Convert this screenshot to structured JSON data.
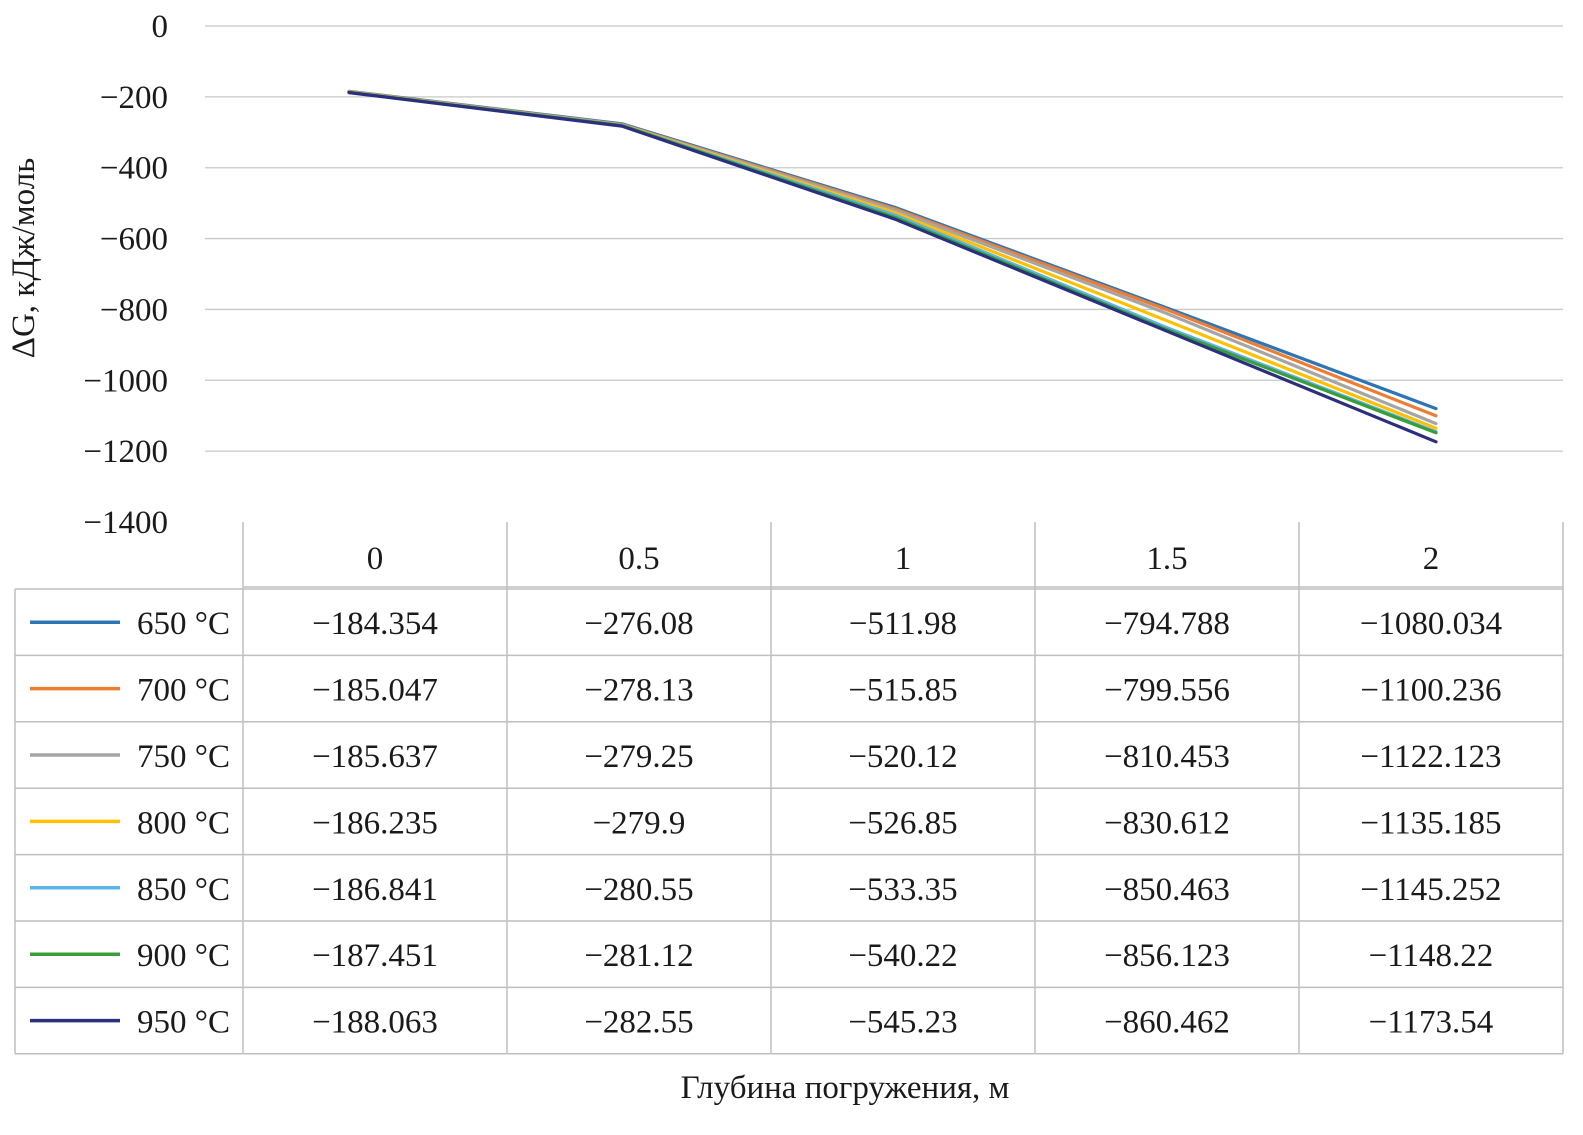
{
  "chart_data": {
    "type": "line",
    "x": [
      "0",
      "0.5",
      "1",
      "1.5",
      "2"
    ],
    "xlabel": "Глубина погружения, м",
    "ylabel": "ΔG, кДж/моль",
    "ylim": [
      -1400,
      0
    ],
    "yticks": [
      0,
      -200,
      -400,
      -600,
      -800,
      -1000,
      -1200,
      -1400
    ],
    "ytick_labels": [
      "0",
      "−200",
      "−400",
      "−600",
      "−800",
      "−1000",
      "−1200",
      "−1400"
    ],
    "grid": "horizontal",
    "legend": "data-table",
    "series": [
      {
        "name": "650 °C",
        "color": "#2e75b6",
        "values": [
          -184.354,
          -276.08,
          -511.98,
          -794.788,
          -1080.034
        ],
        "labels": [
          "−184.354",
          "−276.08",
          "−511.98",
          "−794.788",
          "−1080.034"
        ]
      },
      {
        "name": "700 °C",
        "color": "#ed7d31",
        "values": [
          -185.047,
          -278.13,
          -515.85,
          -799.556,
          -1100.236
        ],
        "labels": [
          "−185.047",
          "−278.13",
          "−515.85",
          "−799.556",
          "−1100.236"
        ]
      },
      {
        "name": "750 °C",
        "color": "#a5a5a5",
        "values": [
          -185.637,
          -279.25,
          -520.12,
          -810.453,
          -1122.123
        ],
        "labels": [
          "−185.637",
          "−279.25",
          "−520.12",
          "−810.453",
          "−1122.123"
        ]
      },
      {
        "name": "800 °C",
        "color": "#ffc000",
        "values": [
          -186.235,
          -279.9,
          -526.85,
          -830.612,
          -1135.185
        ],
        "labels": [
          "−186.235",
          "−279.9",
          "−526.85",
          "−830.612",
          "−1135.185"
        ]
      },
      {
        "name": "850 °C",
        "color": "#5bb5e6",
        "values": [
          -186.841,
          -280.55,
          -533.35,
          -850.463,
          -1145.252
        ],
        "labels": [
          "−186.841",
          "−280.55",
          "−533.35",
          "−850.463",
          "−1145.252"
        ]
      },
      {
        "name": "900 °C",
        "color": "#3a9d3a",
        "values": [
          -187.451,
          -281.12,
          -540.22,
          -856.123,
          -1148.22
        ],
        "labels": [
          "−187.451",
          "−281.12",
          "−540.22",
          "−856.123",
          "−1148.22"
        ]
      },
      {
        "name": "950 °C",
        "color": "#2b2f7e",
        "values": [
          -188.063,
          -282.55,
          -545.23,
          -860.462,
          -1173.54
        ],
        "labels": [
          "−188.063",
          "−282.55",
          "−545.23",
          "−860.462",
          "−1173.54"
        ]
      }
    ]
  }
}
